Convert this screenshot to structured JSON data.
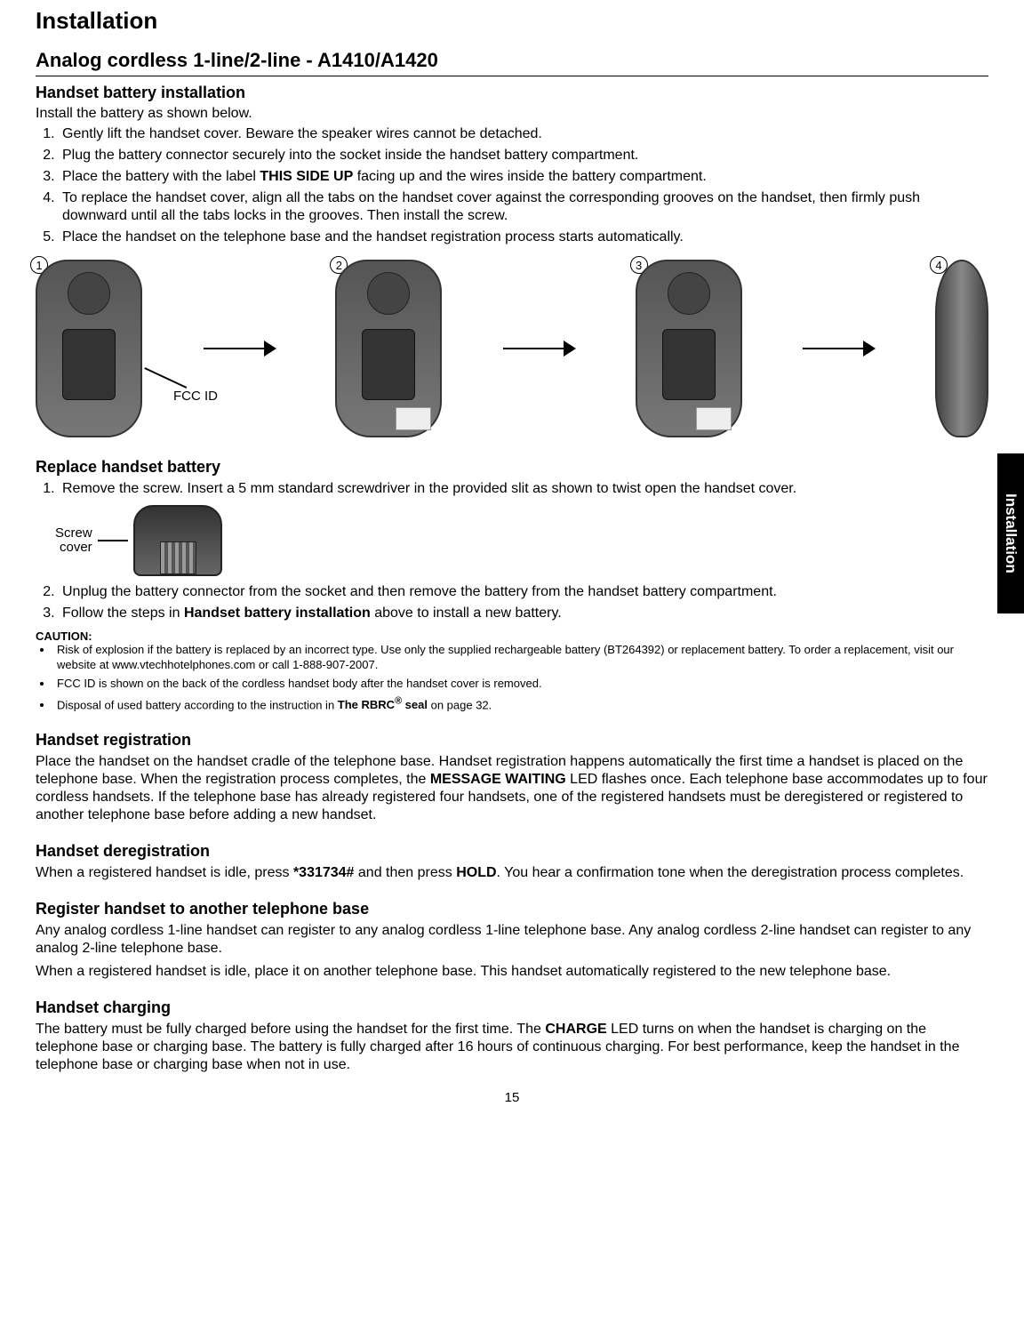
{
  "page": {
    "title": "Installation",
    "subtitle": "Analog cordless 1-line/2-line - A1410/A1420",
    "sideTab": "Installation",
    "number": "15"
  },
  "batteryInstall": {
    "heading": "Handset battery installation",
    "intro": "Install the battery as shown below.",
    "steps": [
      "Gently lift the handset cover. Beware the speaker wires cannot be detached.",
      "Plug the battery connector securely into the socket inside the handset battery compartment.",
      "Place the battery with the label <b>THIS SIDE UP</b> facing up and the wires inside the battery compartment.",
      "To replace the handset cover, align all the tabs on the handset cover against the corresponding grooves on the handset, then firmly push downward until all the tabs locks in the grooves. Then install the screw.",
      "Place the handset on the telephone base and the handset registration process starts automatically."
    ],
    "diagramNumbers": [
      "1",
      "2",
      "3",
      "4"
    ],
    "fccLabel": "FCC ID"
  },
  "replaceBattery": {
    "heading": "Replace handset battery",
    "step1": "Remove the screw. Insert a 5 mm standard screwdriver in the provided slit as shown to twist open the handset cover.",
    "screwLabel": "Screw\ncover",
    "step2": "Unplug the battery connector from the socket and then remove the battery from the handset battery compartment.",
    "step3": "Follow the steps in <b>Handset battery installation</b> above to install a new battery."
  },
  "caution": {
    "heading": "CAUTION:",
    "items": [
      "Risk of explosion if the battery is replaced by an incorrect type. Use only the supplied rechargeable battery (BT264392) or replacement battery. To order a replacement, visit our website at www.vtechhotelphones.com or call 1-888-907-2007.",
      "FCC ID is shown on the back of the cordless handset body after the handset cover is removed.",
      "Disposal of used battery according to the instruction in <b>The RBRC<sup>®</sup> seal</b> on page 32."
    ]
  },
  "registration": {
    "heading": "Handset registration",
    "text": "Place the handset on the handset cradle of the telephone base. Handset registration happens automatically the first time a handset is placed on the telephone base. When the registration process completes, the <b>MESSAGE WAITING</b> LED flashes once. Each telephone base accommodates up to four cordless handsets. If the telephone base has already registered four handsets, one of the registered handsets must be deregistered or registered to another telephone base before adding a new handset."
  },
  "deregistration": {
    "heading": "Handset deregistration",
    "text": "When a registered handset is idle, press <b>*331734#</b> and then press <b>HOLD</b>. You hear a confirmation tone when the deregistration process completes."
  },
  "registerOther": {
    "heading": "Register handset to another telephone base",
    "text1": "Any analog cordless 1-line handset can register to any analog cordless 1-line telephone base. Any analog cordless 2-line handset can register to any analog 2-line telephone base.",
    "text2": "When a registered handset is idle, place it on another telephone base. This handset automatically registered to the new telephone base."
  },
  "charging": {
    "heading": "Handset charging",
    "text": "The battery must be fully charged before using the handset for the first time. The <b>CHARGE</b> LED turns on when the handset is charging on the telephone base or charging base. The battery is fully charged after 16 hours of continuous charging. For best performance, keep the handset in the telephone base or charging base when not in use."
  }
}
